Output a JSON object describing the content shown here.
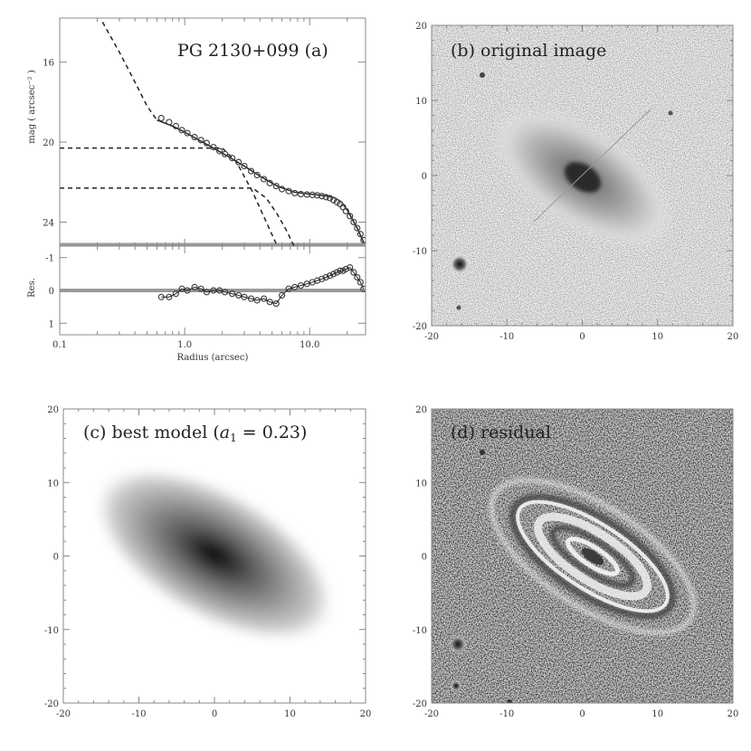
{
  "colors": {
    "frame": "#888888",
    "model_line": "#222222",
    "data_marker": "#444444",
    "zero_line": "#9a9a9a",
    "background": "#ffffff"
  },
  "chart_data": [
    {
      "type": "line",
      "panel": "a",
      "title": "PG 2130+099 (a)",
      "top": {
        "ylabel": "mag ( arcsec⁻² )",
        "yticks": [
          "16",
          "20",
          "24"
        ],
        "ylim": [
          25.2,
          13.8
        ],
        "inverted_y": true,
        "series": [
          {
            "kind": "dashed",
            "x": [
              0.22,
              0.3,
              0.4,
              0.5,
              0.6
            ],
            "y": [
              14.0,
              15.5,
              17.0,
              18.2,
              18.9
            ]
          },
          {
            "kind": "dashed",
            "x": [
              0.1,
              2.0,
              2.6,
              3.5,
              4.5,
              5.5
            ],
            "y": [
              20.3,
              20.3,
              21.0,
              22.5,
              24.0,
              25.2
            ]
          },
          {
            "kind": "dashed",
            "x": [
              0.1,
              3.5,
              4.5,
              5.5,
              6.5,
              7.5
            ],
            "y": [
              22.3,
              22.3,
              22.8,
              23.6,
              24.4,
              25.2
            ]
          },
          {
            "kind": "solid",
            "x": [
              0.6,
              0.8,
              1.0,
              1.3,
              1.7,
              2.2,
              3.0,
              4.0,
              5.5,
              7.5,
              10.0,
              12.0,
              14.0,
              16.0,
              18.0,
              20.0,
              24.0,
              27.0
            ],
            "y": [
              18.9,
              19.2,
              19.5,
              19.9,
              20.3,
              20.7,
              21.2,
              21.7,
              22.2,
              22.5,
              22.6,
              22.65,
              22.7,
              22.8,
              23.0,
              23.4,
              24.3,
              25.0
            ]
          },
          {
            "kind": "markers",
            "x": [
              0.65,
              0.75,
              0.85,
              0.95,
              1.05,
              1.2,
              1.35,
              1.5,
              1.7,
              1.9,
              2.1,
              2.4,
              2.7,
              3.0,
              3.4,
              3.8,
              4.3,
              4.8,
              5.4,
              6.0,
              6.8,
              7.6,
              8.5,
              9.5,
              10.5,
              11.5,
              12.5,
              13.5,
              14.5,
              15.5,
              16.5,
              17.5,
              18.5,
              19.5,
              21.0,
              22.5,
              24.0,
              25.5,
              27.0
            ],
            "y": [
              18.8,
              19.0,
              19.2,
              19.4,
              19.55,
              19.75,
              19.9,
              20.05,
              20.25,
              20.45,
              20.6,
              20.8,
              21.0,
              21.2,
              21.45,
              21.65,
              21.85,
              22.05,
              22.2,
              22.35,
              22.45,
              22.55,
              22.6,
              22.62,
              22.64,
              22.66,
              22.7,
              22.75,
              22.8,
              22.9,
              23.0,
              23.1,
              23.25,
              23.45,
              23.7,
              24.0,
              24.3,
              24.6,
              24.9
            ]
          }
        ]
      },
      "bottom": {
        "ylabel": "Res.",
        "yticks": [
          "1",
          "0",
          "-1"
        ],
        "ylim": [
          1.35,
          -1.35
        ],
        "markers": {
          "x": [
            0.65,
            0.75,
            0.85,
            0.95,
            1.05,
            1.2,
            1.35,
            1.5,
            1.7,
            1.9,
            2.1,
            2.4,
            2.7,
            3.0,
            3.4,
            3.8,
            4.3,
            4.8,
            5.4,
            6.0,
            6.8,
            7.6,
            8.5,
            9.5,
            10.5,
            11.5,
            12.5,
            13.5,
            14.5,
            15.5,
            16.5,
            17.5,
            18.5,
            19.5,
            21.0,
            22.5,
            24.0,
            25.5,
            27.0
          ],
          "y": [
            0.2,
            0.2,
            0.1,
            -0.05,
            0.0,
            -0.1,
            -0.05,
            0.05,
            0.0,
            0.0,
            0.05,
            0.1,
            0.15,
            0.2,
            0.25,
            0.3,
            0.25,
            0.35,
            0.4,
            0.15,
            -0.05,
            -0.1,
            -0.15,
            -0.2,
            -0.25,
            -0.3,
            -0.35,
            -0.4,
            -0.45,
            -0.5,
            -0.55,
            -0.6,
            -0.6,
            -0.65,
            -0.7,
            -0.55,
            -0.4,
            -0.25,
            -0.05
          ]
        }
      },
      "xlabel": "Radius (arcsec)",
      "xticks": [
        "0.1",
        "1.0",
        "10.0"
      ],
      "x_log": true,
      "xlim": [
        0.1,
        28
      ]
    },
    {
      "type": "heatmap",
      "panel": "b",
      "title": "(b) original image",
      "ticks": [
        "-20",
        "-10",
        "0",
        "10",
        "20"
      ],
      "xlim": [
        -20,
        20
      ],
      "ylim": [
        -20,
        20
      ]
    },
    {
      "type": "heatmap",
      "panel": "c",
      "title_prefix": "(c) best model (",
      "title_var": "a",
      "title_sub": "1",
      "title_suffix": " = 0.23)",
      "ticks": [
        "-20",
        "-10",
        "0",
        "10",
        "20"
      ],
      "xlim": [
        -20,
        20
      ],
      "ylim": [
        -20,
        20
      ]
    },
    {
      "type": "heatmap",
      "panel": "d",
      "title": "(d) residual",
      "ticks": [
        "-20",
        "-10",
        "0",
        "10",
        "20"
      ],
      "xlim": [
        -20,
        20
      ],
      "ylim": [
        -20,
        20
      ]
    }
  ]
}
